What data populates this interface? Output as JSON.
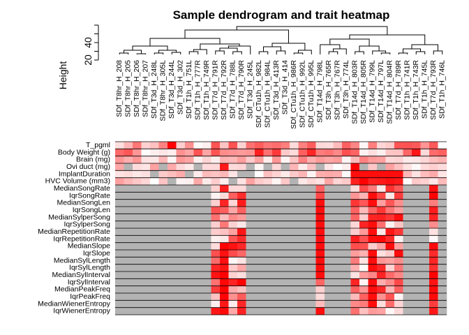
{
  "chart_data": {
    "type": "heatmap",
    "title": "Sample dendrogram and trait heatmap",
    "dendrogram": {
      "ylabel": "Height",
      "yticks": [
        20,
        40
      ],
      "ylim": [
        20,
        60
      ],
      "leaf_labels": [
        "SDf_T8hr_H_208",
        "SDf_T8hr_H_205",
        "SDf_T8hr_H_206",
        "SDf_T8hr_H_207",
        "SDf_T3d_H_248L",
        "SDf_T8hr_H_305L",
        "SDf_T3d_H_244L",
        "SDf_T3d_H_302",
        "SDf_T1h_H_751L",
        "SDf_T1h_H_777R",
        "SDf_T1h_H_749R",
        "SDf_T7d_H_791R",
        "SDf_T7d_H_792R",
        "SDf_T7d_H_788L",
        "SDf_T7d_H_790R",
        "SDf_T3d_H_245L",
        "SDf_CTu1h_H_982L",
        "SDf_CTu1h_H_984L",
        "SDf_T3d_H_413R",
        "SDf_T3d_H_414",
        "SDf_CTu1h_H_986R",
        "SDf_CTu1h_H_992L",
        "SDf_CTu1h_H_995L",
        "SDf_T14d_H_798L",
        "SDf_T3h_H_765R",
        "SDf_T3h_H_767R",
        "SDf_T3h_H_774L",
        "SDf_T14d_H_803R",
        "SDf_T14d_H_805R",
        "SDf_T14d_H_799L",
        "SDf_T14d_H_797L",
        "SDf_T14d_H_804R",
        "SDf_T7d_H_789R",
        "SDf_T1h_H_741R",
        "SDf_T1h_H_743R",
        "SDf_T1h_H_745L",
        "SDf_T7d_H_793R",
        "SDf_T1h_H_746L"
      ]
    },
    "traits": [
      "T_pgml",
      "Body Weight (g)",
      "Brain (mg)",
      "Ovi duct (mg)",
      "ImplantDuration",
      "HVC Volume (mm3)",
      "MedianSongRate",
      "IqrSongRate",
      "MedianSongLen",
      "IqrSongLen",
      "MedianSylperSong",
      "IqrSylperSong",
      "MedianRepetitionRate",
      "IqrRepetitionRate",
      "MedianSlope",
      "IqrSlope",
      "MedianSylLength",
      "IqrSylLength",
      "MedianSylInterval",
      "IqrSylInterval",
      "MedianPeakFreq",
      "IqrPeakFreq",
      "MedianWienerEntropy",
      "IqrWienerEntropy"
    ],
    "value_encoding": "0 = white, 1 = red, null = grey (missing)",
    "missing_color": "#b3b3b3",
    "low_color": "#ffffff",
    "high_color": "#ff0000"
  }
}
